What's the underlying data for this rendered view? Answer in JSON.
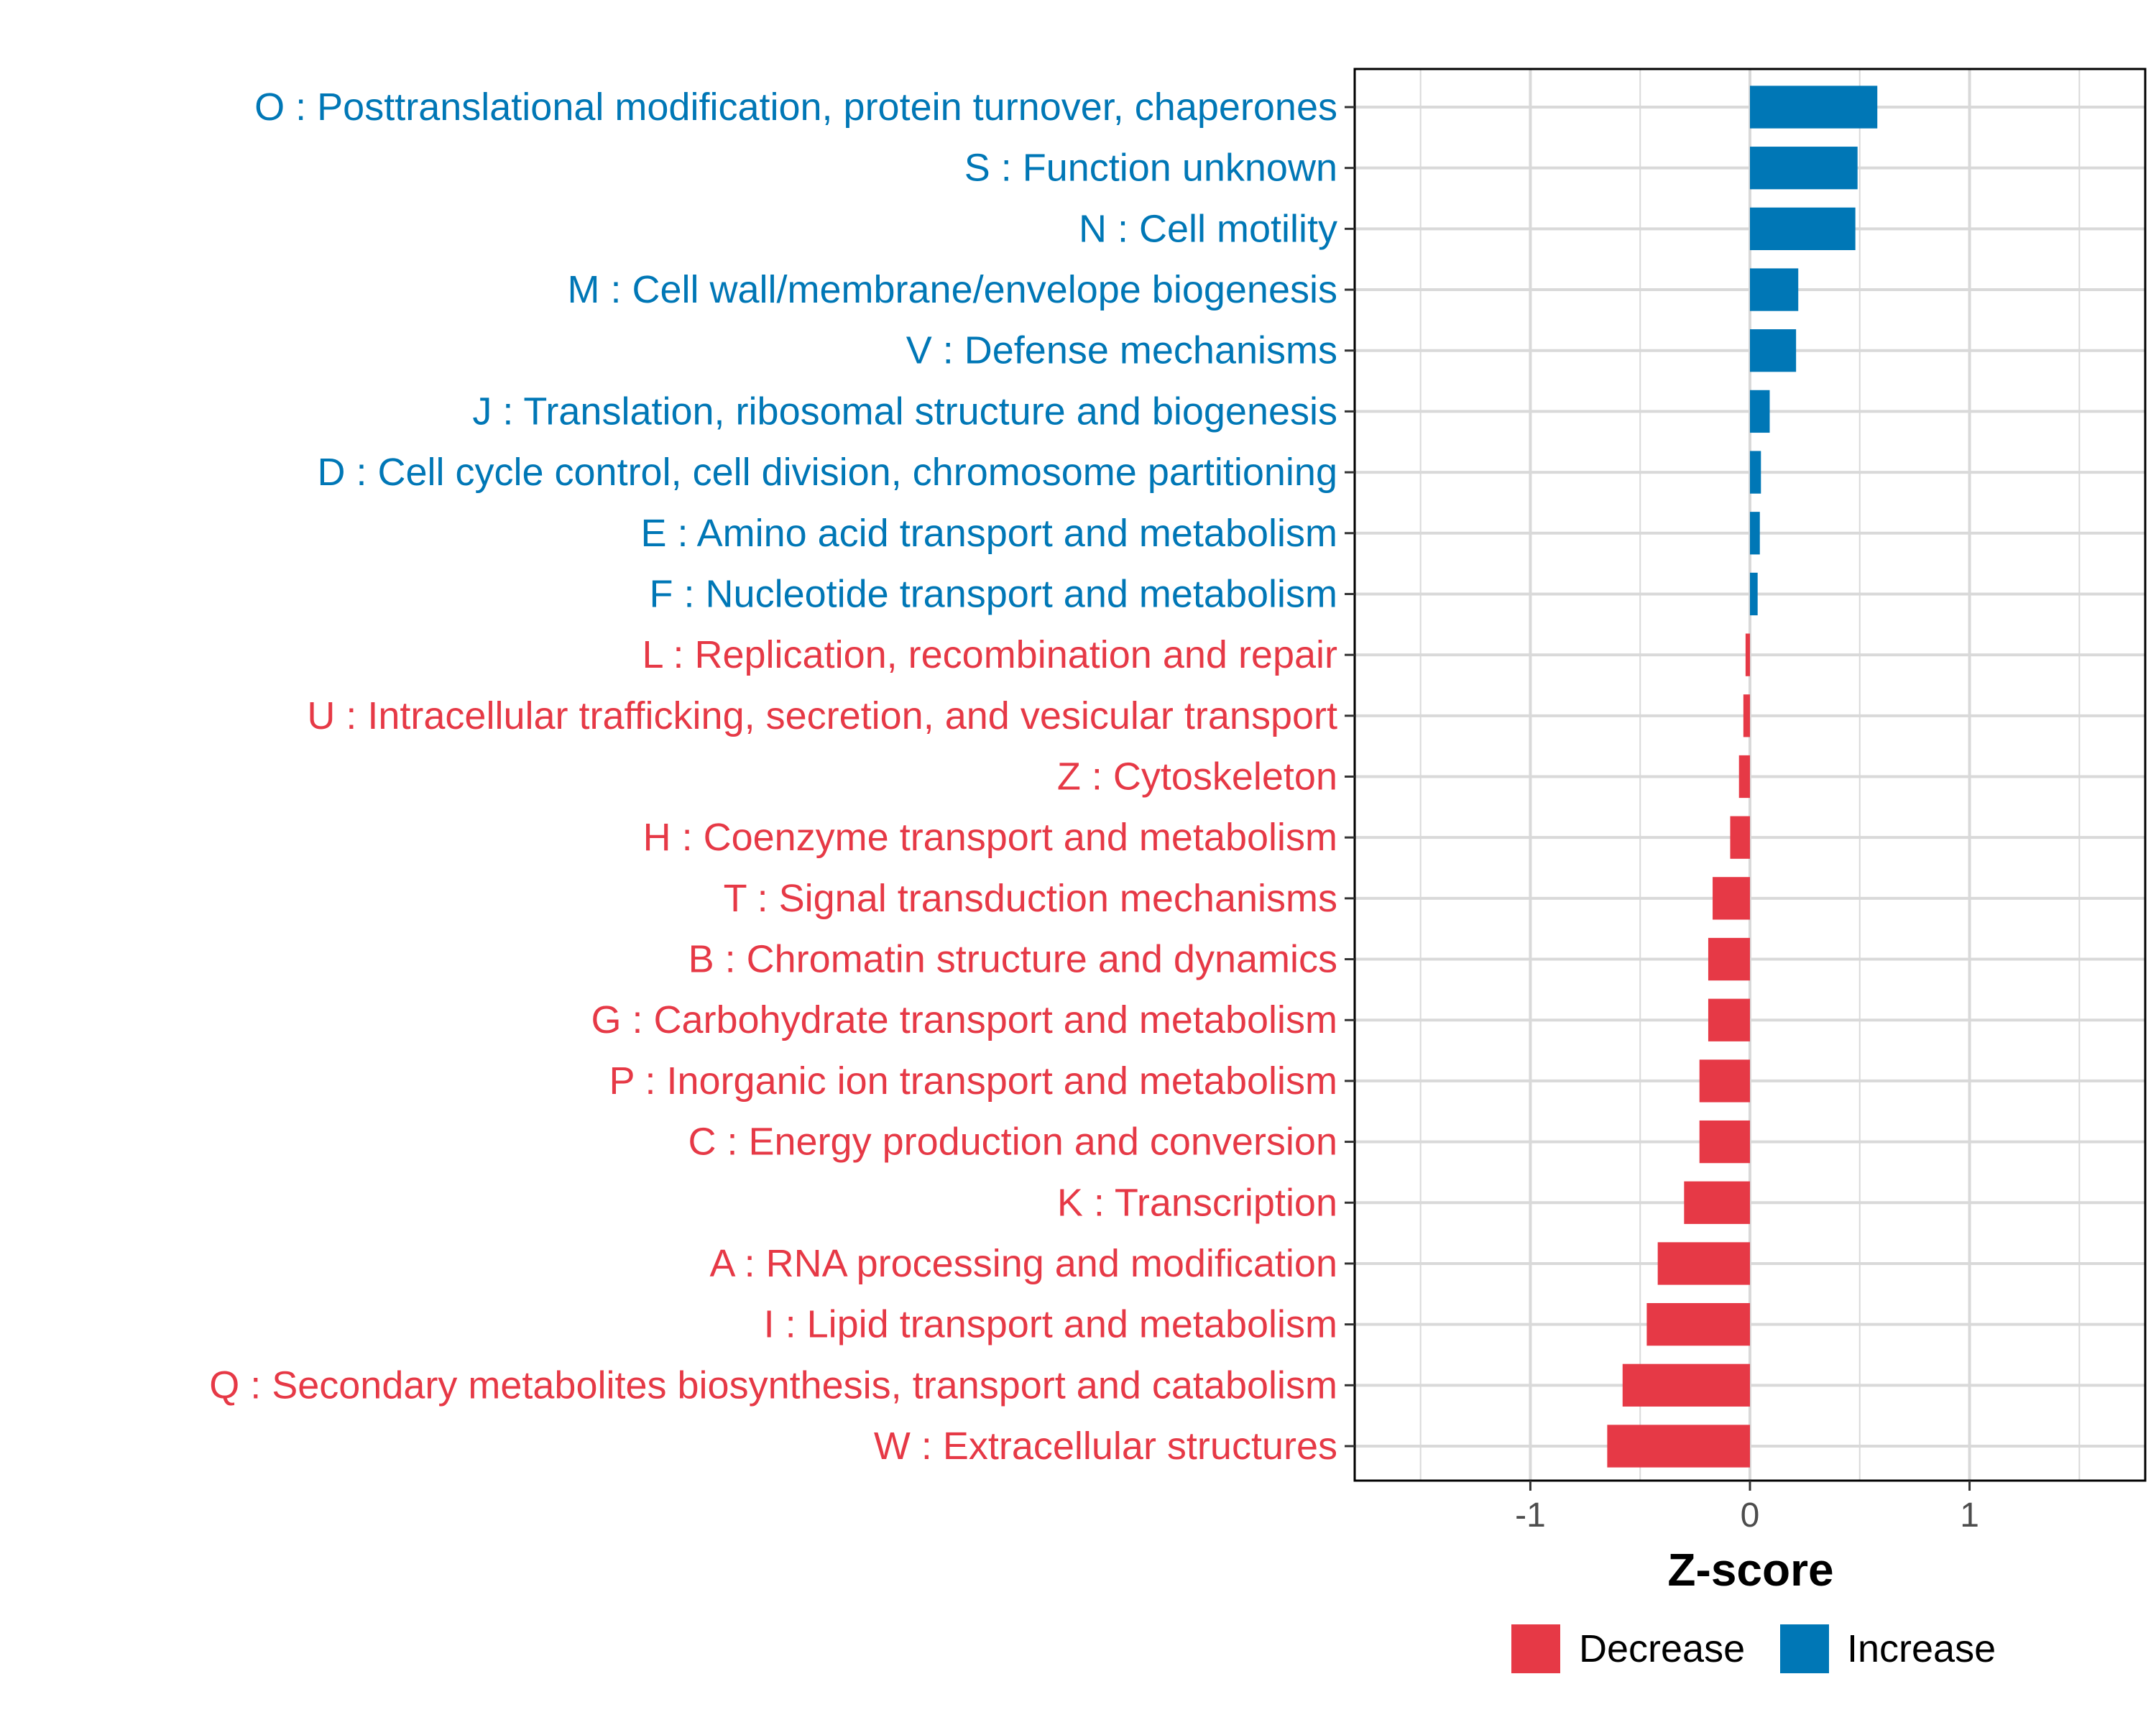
{
  "chart_data": {
    "type": "bar",
    "orientation": "horizontal",
    "xlabel": "Z-score",
    "ylabel": "",
    "xlim": [
      -1.8,
      1.8
    ],
    "xticks": [
      -1,
      0,
      1
    ],
    "xtick_labels": [
      "-1",
      "0",
      "1"
    ],
    "grid": true,
    "colors": {
      "Decrease": "#E63946",
      "Increase": "#0077B6"
    },
    "legend": {
      "position": "bottom",
      "entries": [
        {
          "label": "Decrease",
          "color": "#E63946"
        },
        {
          "label": "Increase",
          "color": "#0077B6"
        }
      ]
    },
    "bars": [
      {
        "label": "O : Posttranslational modification, protein turnover, chaperones",
        "value": 0.58,
        "group": "Increase"
      },
      {
        "label": "S : Function unknown",
        "value": 0.49,
        "group": "Increase"
      },
      {
        "label": "N : Cell motility",
        "value": 0.48,
        "group": "Increase"
      },
      {
        "label": "M : Cell wall/membrane/envelope biogenesis",
        "value": 0.22,
        "group": "Increase"
      },
      {
        "label": "V : Defense mechanisms",
        "value": 0.21,
        "group": "Increase"
      },
      {
        "label": "J : Translation, ribosomal structure and biogenesis",
        "value": 0.09,
        "group": "Increase"
      },
      {
        "label": "D : Cell cycle control, cell division, chromosome partitioning",
        "value": 0.05,
        "group": "Increase"
      },
      {
        "label": "E : Amino acid transport and metabolism",
        "value": 0.045,
        "group": "Increase"
      },
      {
        "label": "F : Nucleotide transport and metabolism",
        "value": 0.035,
        "group": "Increase"
      },
      {
        "label": "L : Replication, recombination and repair",
        "value": -0.02,
        "group": "Decrease"
      },
      {
        "label": "U : Intracellular trafficking, secretion, and vesicular transport",
        "value": -0.03,
        "group": "Decrease"
      },
      {
        "label": "Z : Cytoskeleton",
        "value": -0.05,
        "group": "Decrease"
      },
      {
        "label": "H : Coenzyme transport and metabolism",
        "value": -0.09,
        "group": "Decrease"
      },
      {
        "label": "T : Signal transduction mechanisms",
        "value": -0.17,
        "group": "Decrease"
      },
      {
        "label": "B : Chromatin structure and dynamics",
        "value": -0.19,
        "group": "Decrease"
      },
      {
        "label": "G : Carbohydrate transport and metabolism",
        "value": -0.19,
        "group": "Decrease"
      },
      {
        "label": "P : Inorganic ion transport and metabolism",
        "value": -0.23,
        "group": "Decrease"
      },
      {
        "label": "C : Energy production and conversion",
        "value": -0.23,
        "group": "Decrease"
      },
      {
        "label": "K : Transcription",
        "value": -0.3,
        "group": "Decrease"
      },
      {
        "label": "A : RNA processing and modification",
        "value": -0.42,
        "group": "Decrease"
      },
      {
        "label": "I : Lipid transport and metabolism",
        "value": -0.47,
        "group": "Decrease"
      },
      {
        "label": "Q : Secondary metabolites biosynthesis, transport and catabolism",
        "value": -0.58,
        "group": "Decrease"
      },
      {
        "label": "W : Extracellular structures",
        "value": -0.65,
        "group": "Decrease"
      }
    ]
  }
}
